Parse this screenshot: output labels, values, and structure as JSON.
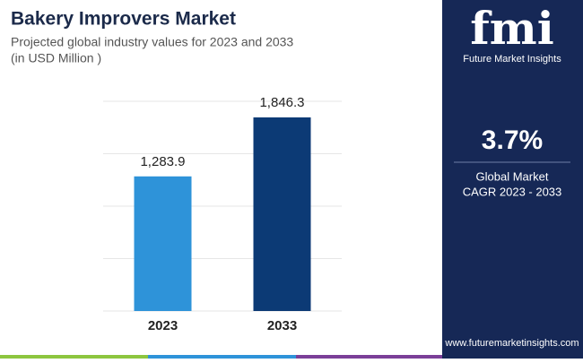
{
  "chart_data": {
    "type": "bar",
    "title": "Bakery Improvers Market",
    "subtitle": [
      "Projected global industry values for 2023 and 2033",
      "(in USD Million )"
    ],
    "categories": [
      "2023",
      "2033"
    ],
    "values": [
      1283.9,
      1846.3
    ],
    "value_labels": [
      "1,283.9",
      "1,846.3"
    ],
    "colors": [
      "#2e93d9",
      "#0c3a75"
    ],
    "ylim": [
      0,
      2000
    ],
    "yticks": [
      0,
      500,
      1000,
      1500,
      2000
    ],
    "grid": true
  },
  "panel": {
    "logo": "fmi",
    "brand": "Future Market Insights",
    "cagr": "3.7%",
    "cagr_label": [
      "Global Market",
      "CAGR 2023 - 2033"
    ],
    "url": "www.futuremarketinsights.com"
  }
}
